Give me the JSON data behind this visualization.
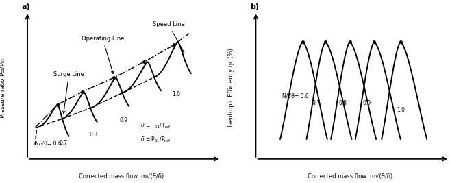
{
  "fig_width": 6.57,
  "fig_height": 2.67,
  "dpi": 100,
  "background_color": "#ffffff",
  "panel_a": {
    "label": "a)",
    "xlabel": "Corrected mass flow: m√(θ/δ)",
    "ylabel": "Pressure ratio P₀₂/P₀₁",
    "speed_labels": [
      "N/√θ= 0.6",
      "0.7",
      "0.8",
      "0.9",
      "1.0"
    ],
    "annotation_surge": "Surge Line",
    "annotation_operating": "Operating Line",
    "annotation_speed": "Speed Line"
  },
  "panel_b": {
    "label": "b)",
    "xlabel": "Corrected mass flow: m√(θ/δ)",
    "ylabel": "Isentropic Efficiency ηᴄ (%)",
    "speed_labels": [
      "N/√θ= 0.6",
      "0.7",
      "0.8",
      "0.9",
      "1.0"
    ]
  }
}
